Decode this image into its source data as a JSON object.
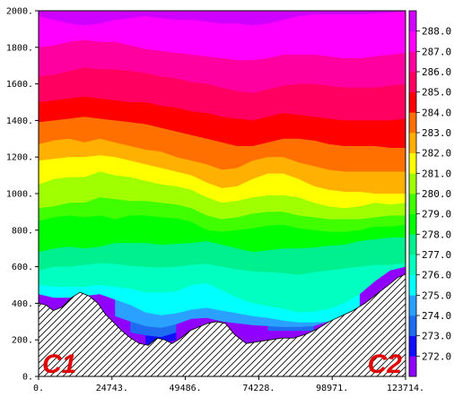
{
  "chart_data": {
    "type": "heatmap",
    "title": "",
    "xlabel": "",
    "ylabel": "",
    "xlim": [
      0,
      123714
    ],
    "ylim": [
      0,
      2000
    ],
    "x_ticks": [
      {
        "value": 0,
        "label": "0."
      },
      {
        "value": 24743,
        "label": "24743."
      },
      {
        "value": 49486,
        "label": "49486."
      },
      {
        "value": 74228,
        "label": "74228."
      },
      {
        "value": 98971,
        "label": "98971."
      },
      {
        "value": 123714,
        "label": "123714."
      }
    ],
    "y_ticks": [
      {
        "value": 0,
        "label": "0."
      },
      {
        "value": 200,
        "label": "200."
      },
      {
        "value": 400,
        "label": "400."
      },
      {
        "value": 600,
        "label": "600."
      },
      {
        "value": 800,
        "label": "800."
      },
      {
        "value": 1000,
        "label": "1000."
      },
      {
        "value": 1200,
        "label": "1200."
      },
      {
        "value": 1400,
        "label": "1400."
      },
      {
        "value": 1600,
        "label": "1600."
      },
      {
        "value": 1800,
        "label": "1800."
      },
      {
        "value": 2000,
        "label": "2000."
      }
    ],
    "colorbar": {
      "levels": [
        272.0,
        273.0,
        274.0,
        275.0,
        276.0,
        277.0,
        278.0,
        279.0,
        280.0,
        281.0,
        282.0,
        283.0,
        284.0,
        285.0,
        286.0,
        287.0,
        288.0
      ],
      "labels": [
        "272.0",
        "273.0",
        "274.0",
        "275.0",
        "276.0",
        "277.0",
        "278.0",
        "279.0",
        "280.0",
        "281.0",
        "282.0",
        "283.0",
        "284.0",
        "285.0",
        "286.0",
        "287.0",
        "288.0"
      ],
      "colors": [
        "#9000ff",
        "#1010ff",
        "#1e6cf0",
        "#2aa0ff",
        "#00ffff",
        "#00ffc0",
        "#00f090",
        "#00ff00",
        "#40ff00",
        "#a0ff00",
        "#ffff00",
        "#ffb000",
        "#ff7000",
        "#ff0000",
        "#ff0060",
        "#ff00a0",
        "#ff00ff",
        "#d000ff"
      ]
    },
    "bands": [
      {
        "level": 272.0,
        "height": [
          -1,
          -1,
          -1,
          -1,
          -1,
          -1,
          -1,
          175,
          180,
          200,
          -1,
          -1,
          -1,
          -1,
          -1,
          -1,
          -1,
          -1,
          -1,
          -1,
          -1,
          -1,
          -1,
          -1,
          -1
        ]
      },
      {
        "level": 273.0,
        "height": [
          -1,
          -1,
          -1,
          -1,
          -1,
          -1,
          240,
          225,
          215,
          240,
          -1,
          -1,
          -1,
          -1,
          -1,
          250,
          250,
          250,
          250,
          -1,
          -1,
          -1,
          -1,
          -1,
          -1
        ]
      },
      {
        "level": 274.0,
        "height": [
          -1,
          -1,
          -1,
          -1,
          -1,
          330,
          300,
          275,
          265,
          285,
          315,
          320,
          300,
          290,
          280,
          275,
          270,
          270,
          275,
          300,
          340,
          400,
          -1,
          -1,
          -1
        ]
      },
      {
        "level": 275.0,
        "height": [
          450,
          430,
          430,
          440,
          450,
          420,
          390,
          350,
          335,
          345,
          365,
          375,
          360,
          345,
          330,
          320,
          305,
          295,
          295,
          300,
          330,
          380,
          -1,
          -1,
          -1
        ]
      },
      {
        "level": 276.0,
        "height": [
          500,
          490,
          490,
          490,
          500,
          490,
          480,
          460,
          460,
          465,
          500,
          510,
          470,
          430,
          400,
          385,
          370,
          350,
          355,
          370,
          400,
          450,
          520,
          580,
          600
        ]
      },
      {
        "level": 277.0,
        "height": [
          580,
          600,
          600,
          610,
          620,
          615,
          605,
          600,
          595,
          600,
          610,
          615,
          600,
          585,
          575,
          570,
          565,
          555,
          570,
          580,
          590,
          600,
          610,
          610,
          620
        ]
      },
      {
        "level": 278.0,
        "height": [
          680,
          700,
          710,
          700,
          710,
          730,
          730,
          730,
          720,
          725,
          730,
          740,
          720,
          700,
          680,
          690,
          700,
          700,
          705,
          715,
          720,
          740,
          750,
          760,
          760
        ]
      },
      {
        "level": 279.0,
        "height": [
          850,
          870,
          880,
          870,
          880,
          860,
          880,
          880,
          870,
          865,
          845,
          800,
          790,
          800,
          810,
          825,
          830,
          810,
          800,
          790,
          790,
          800,
          820,
          820,
          830
        ]
      },
      {
        "level": 280.0,
        "height": [
          920,
          930,
          950,
          950,
          980,
          970,
          960,
          960,
          950,
          940,
          920,
          880,
          860,
          870,
          890,
          900,
          900,
          880,
          870,
          860,
          860,
          860,
          870,
          880,
          880
        ]
      },
      {
        "level": 281.0,
        "height": [
          1050,
          1080,
          1090,
          1090,
          1120,
          1100,
          1090,
          1070,
          1050,
          1040,
          1020,
          980,
          950,
          960,
          980,
          990,
          990,
          980,
          950,
          930,
          920,
          930,
          950,
          940,
          950
        ]
      },
      {
        "level": 282.0,
        "height": [
          1180,
          1190,
          1200,
          1200,
          1210,
          1200,
          1180,
          1160,
          1140,
          1120,
          1100,
          1060,
          1030,
          1040,
          1080,
          1110,
          1110,
          1080,
          1040,
          1020,
          1010,
          1010,
          1000,
          1000,
          1000
        ]
      },
      {
        "level": 283.0,
        "height": [
          1270,
          1290,
          1300,
          1280,
          1300,
          1280,
          1260,
          1240,
          1230,
          1200,
          1180,
          1160,
          1130,
          1140,
          1180,
          1200,
          1200,
          1170,
          1150,
          1130,
          1120,
          1120,
          1120,
          1120,
          1120
        ]
      },
      {
        "level": 284.0,
        "height": [
          1390,
          1400,
          1410,
          1420,
          1410,
          1400,
          1390,
          1380,
          1360,
          1340,
          1320,
          1300,
          1280,
          1260,
          1260,
          1280,
          1300,
          1300,
          1290,
          1270,
          1260,
          1260,
          1260,
          1250,
          1250
        ]
      },
      {
        "level": 285.0,
        "height": [
          1500,
          1510,
          1520,
          1530,
          1520,
          1510,
          1500,
          1500,
          1480,
          1470,
          1450,
          1440,
          1420,
          1410,
          1400,
          1420,
          1440,
          1430,
          1420,
          1410,
          1400,
          1400,
          1400,
          1400,
          1410
        ]
      },
      {
        "level": 286.0,
        "height": [
          1640,
          1650,
          1670,
          1690,
          1680,
          1680,
          1670,
          1660,
          1640,
          1630,
          1610,
          1600,
          1580,
          1560,
          1550,
          1570,
          1590,
          1600,
          1600,
          1590,
          1580,
          1580,
          1580,
          1590,
          1600
        ]
      },
      {
        "level": 287.0,
        "height": [
          1800,
          1810,
          1830,
          1840,
          1830,
          1830,
          1810,
          1790,
          1780,
          1770,
          1760,
          1750,
          1740,
          1730,
          1730,
          1740,
          1760,
          1760,
          1760,
          1750,
          1740,
          1740,
          1750,
          1760,
          1770
        ]
      },
      {
        "level": 288.0,
        "height": [
          1970,
          1950,
          1930,
          1920,
          1930,
          1950,
          1960,
          1970,
          1960,
          1950,
          1950,
          1940,
          1930,
          1930,
          1920,
          1930,
          1950,
          1970,
          1980,
          1980,
          1980,
          1980,
          1985,
          1990,
          1995
        ]
      }
    ],
    "terrain": {
      "x": [
        0,
        2500,
        5000,
        8000,
        11000,
        14000,
        17000,
        20000,
        22500,
        25000,
        28000,
        31000,
        34000,
        37000,
        40000,
        42500,
        45000,
        48000,
        51000,
        54000,
        57000,
        60000,
        63000,
        66000,
        70000,
        74000,
        78000,
        82000,
        86000,
        90000,
        94000,
        98000,
        102000,
        106000,
        110000,
        114000,
        118000,
        121000,
        123714
      ],
      "height": [
        400,
        390,
        360,
        380,
        430,
        460,
        440,
        400,
        340,
        300,
        250,
        210,
        180,
        170,
        210,
        200,
        180,
        210,
        250,
        270,
        290,
        300,
        290,
        230,
        180,
        190,
        200,
        210,
        210,
        230,
        260,
        300,
        330,
        360,
        400,
        450,
        500,
        540,
        560
      ]
    },
    "annotations": [
      {
        "text": "C1",
        "position": "bottom-left"
      },
      {
        "text": "C2",
        "position": "bottom-right"
      }
    ],
    "grid": false,
    "legend": "colorbar-right"
  }
}
